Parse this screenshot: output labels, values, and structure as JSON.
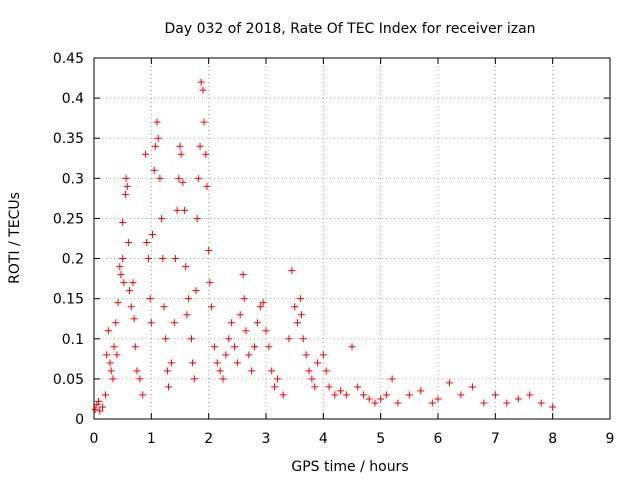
{
  "chart_data": {
    "type": "scatter",
    "title": "Day 032 of 2018, Rate Of TEC Index for receiver izan",
    "xlabel": "GPS time / hours",
    "ylabel": "ROTI / TECUs",
    "xlim": [
      0,
      9
    ],
    "ylim": [
      0,
      0.45
    ],
    "x_ticks": [
      0,
      1,
      2,
      3,
      4,
      5,
      6,
      7,
      8,
      9
    ],
    "y_ticks": [
      0,
      0.05,
      0.1,
      0.15,
      0.2,
      0.25,
      0.3,
      0.35,
      0.4,
      0.45
    ],
    "x_tick_labels": [
      "0",
      "1",
      "2",
      "3",
      "4",
      "5",
      "6",
      "7",
      "8",
      "9"
    ],
    "y_tick_labels": [
      "0",
      "0.05",
      "0.1",
      "0.15",
      "0.2",
      "0.25",
      "0.3",
      "0.35",
      "0.4",
      "0.45"
    ],
    "grid": true,
    "marker": "+",
    "series": [
      {
        "name": "ROTI",
        "color": "#ff0000",
        "points": [
          [
            0.02,
            0.012
          ],
          [
            0.05,
            0.018
          ],
          [
            0.08,
            0.022
          ],
          [
            0.1,
            0.01
          ],
          [
            0.15,
            0.015
          ],
          [
            0.2,
            0.03
          ],
          [
            0.22,
            0.08
          ],
          [
            0.25,
            0.11
          ],
          [
            0.28,
            0.07
          ],
          [
            0.3,
            0.06
          ],
          [
            0.33,
            0.05
          ],
          [
            0.35,
            0.09
          ],
          [
            0.38,
            0.12
          ],
          [
            0.4,
            0.08
          ],
          [
            0.42,
            0.145
          ],
          [
            0.45,
            0.19
          ],
          [
            0.47,
            0.18
          ],
          [
            0.5,
            0.2
          ],
          [
            0.5,
            0.245
          ],
          [
            0.52,
            0.17
          ],
          [
            0.55,
            0.28
          ],
          [
            0.56,
            0.3
          ],
          [
            0.58,
            0.29
          ],
          [
            0.6,
            0.22
          ],
          [
            0.62,
            0.16
          ],
          [
            0.65,
            0.14
          ],
          [
            0.68,
            0.17
          ],
          [
            0.7,
            0.125
          ],
          [
            0.72,
            0.09
          ],
          [
            0.75,
            0.06
          ],
          [
            0.8,
            0.05
          ],
          [
            0.85,
            0.03
          ],
          [
            0.9,
            0.33
          ],
          [
            0.92,
            0.22
          ],
          [
            0.95,
            0.2
          ],
          [
            0.98,
            0.15
          ],
          [
            1.0,
            0.12
          ],
          [
            1.02,
            0.23
          ],
          [
            1.05,
            0.31
          ],
          [
            1.07,
            0.34
          ],
          [
            1.1,
            0.37
          ],
          [
            1.12,
            0.35
          ],
          [
            1.15,
            0.3
          ],
          [
            1.18,
            0.25
          ],
          [
            1.2,
            0.2
          ],
          [
            1.22,
            0.14
          ],
          [
            1.25,
            0.1
          ],
          [
            1.28,
            0.06
          ],
          [
            1.3,
            0.04
          ],
          [
            1.35,
            0.07
          ],
          [
            1.4,
            0.12
          ],
          [
            1.42,
            0.2
          ],
          [
            1.45,
            0.26
          ],
          [
            1.48,
            0.3
          ],
          [
            1.5,
            0.34
          ],
          [
            1.52,
            0.33
          ],
          [
            1.55,
            0.295
          ],
          [
            1.58,
            0.26
          ],
          [
            1.6,
            0.19
          ],
          [
            1.62,
            0.13
          ],
          [
            1.65,
            0.15
          ],
          [
            1.7,
            0.1
          ],
          [
            1.72,
            0.07
          ],
          [
            1.75,
            0.05
          ],
          [
            1.78,
            0.16
          ],
          [
            1.8,
            0.25
          ],
          [
            1.82,
            0.3
          ],
          [
            1.85,
            0.34
          ],
          [
            1.87,
            0.42
          ],
          [
            1.9,
            0.41
          ],
          [
            1.92,
            0.37
          ],
          [
            1.95,
            0.33
          ],
          [
            1.97,
            0.29
          ],
          [
            2.0,
            0.21
          ],
          [
            2.02,
            0.17
          ],
          [
            2.05,
            0.14
          ],
          [
            2.1,
            0.09
          ],
          [
            2.15,
            0.07
          ],
          [
            2.2,
            0.06
          ],
          [
            2.25,
            0.05
          ],
          [
            2.3,
            0.08
          ],
          [
            2.35,
            0.1
          ],
          [
            2.4,
            0.12
          ],
          [
            2.45,
            0.09
          ],
          [
            2.5,
            0.07
          ],
          [
            2.55,
            0.13
          ],
          [
            2.6,
            0.18
          ],
          [
            2.62,
            0.15
          ],
          [
            2.65,
            0.11
          ],
          [
            2.7,
            0.08
          ],
          [
            2.75,
            0.06
          ],
          [
            2.8,
            0.09
          ],
          [
            2.85,
            0.12
          ],
          [
            2.9,
            0.14
          ],
          [
            2.95,
            0.145
          ],
          [
            3.0,
            0.11
          ],
          [
            3.05,
            0.09
          ],
          [
            3.1,
            0.06
          ],
          [
            3.15,
            0.04
          ],
          [
            3.2,
            0.05
          ],
          [
            3.3,
            0.03
          ],
          [
            3.4,
            0.1
          ],
          [
            3.45,
            0.185
          ],
          [
            3.5,
            0.14
          ],
          [
            3.55,
            0.12
          ],
          [
            3.6,
            0.15
          ],
          [
            3.62,
            0.13
          ],
          [
            3.65,
            0.1
          ],
          [
            3.7,
            0.08
          ],
          [
            3.75,
            0.06
          ],
          [
            3.8,
            0.05
          ],
          [
            3.85,
            0.04
          ],
          [
            3.9,
            0.07
          ],
          [
            4.0,
            0.08
          ],
          [
            4.05,
            0.06
          ],
          [
            4.1,
            0.04
          ],
          [
            4.2,
            0.03
          ],
          [
            4.3,
            0.035
          ],
          [
            4.4,
            0.03
          ],
          [
            4.5,
            0.09
          ],
          [
            4.6,
            0.04
          ],
          [
            4.7,
            0.03
          ],
          [
            4.8,
            0.025
          ],
          [
            4.9,
            0.02
          ],
          [
            5.0,
            0.025
          ],
          [
            5.1,
            0.03
          ],
          [
            5.2,
            0.05
          ],
          [
            5.3,
            0.02
          ],
          [
            5.5,
            0.03
          ],
          [
            5.7,
            0.035
          ],
          [
            5.9,
            0.02
          ],
          [
            6.0,
            0.025
          ],
          [
            6.2,
            0.045
          ],
          [
            6.4,
            0.03
          ],
          [
            6.6,
            0.04
          ],
          [
            6.8,
            0.02
          ],
          [
            7.0,
            0.03
          ],
          [
            7.2,
            0.02
          ],
          [
            7.4,
            0.025
          ],
          [
            7.6,
            0.03
          ],
          [
            7.8,
            0.02
          ],
          [
            8.0,
            0.015
          ]
        ]
      }
    ]
  }
}
